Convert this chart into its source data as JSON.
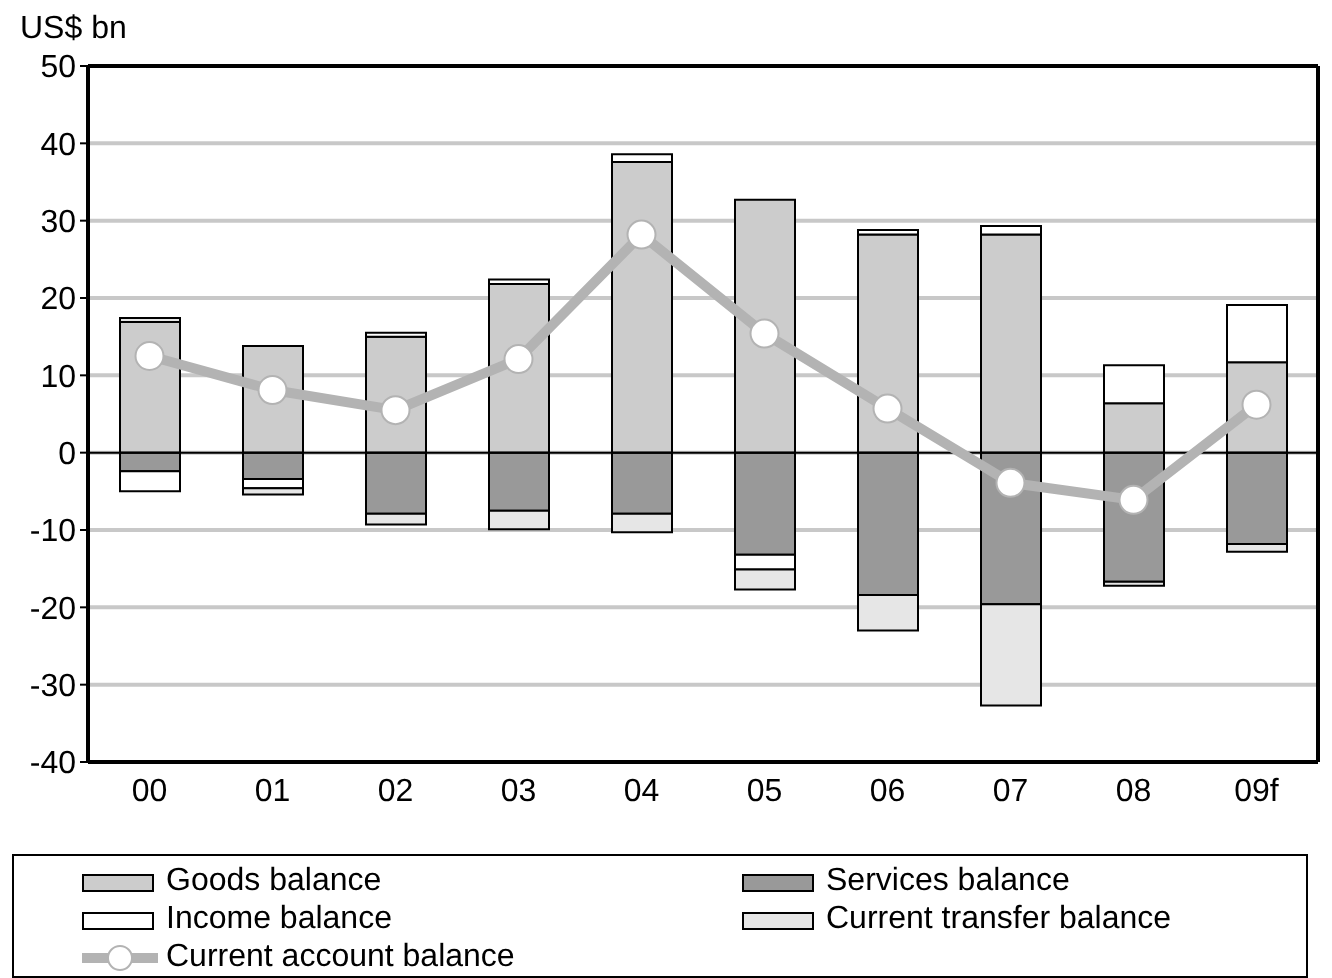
{
  "chart_data": {
    "type": "bar",
    "ylabel": "US$ bn",
    "categories": [
      "00",
      "01",
      "02",
      "03",
      "04",
      "05",
      "06",
      "07",
      "08",
      "09f"
    ],
    "stacked": true,
    "series": [
      {
        "name": "Goods balance",
        "color": "#cccccc",
        "values": [
          16.9,
          13.8,
          15.0,
          21.8,
          37.6,
          32.7,
          28.2,
          28.2,
          6.4,
          11.7
        ]
      },
      {
        "name": "Services balance",
        "color": "#999999",
        "values": [
          -2.4,
          -3.4,
          -7.9,
          -7.5,
          -7.9,
          -13.2,
          -18.4,
          -19.6,
          -16.7,
          -11.8
        ]
      },
      {
        "name": "Income balance",
        "color": "#ffffff",
        "values": [
          -2.6,
          -1.2,
          0.5,
          0.6,
          1.0,
          -1.9,
          0.6,
          1.1,
          4.9,
          7.4
        ]
      },
      {
        "name": "Current transfer balance",
        "color": "#e6e6e6",
        "values": [
          0.5,
          -0.8,
          -1.4,
          -2.4,
          -2.4,
          -2.6,
          -4.6,
          -13.1,
          -0.5,
          -1.0
        ]
      },
      {
        "name": "Current account balance",
        "type": "line",
        "color": "#b3b3b3",
        "values": [
          12.5,
          8.1,
          5.5,
          12.1,
          28.2,
          15.4,
          5.7,
          -3.9,
          -6.1,
          6.2
        ]
      }
    ],
    "ylim": [
      -40,
      50
    ],
    "yticks": [
      -40,
      -30,
      -20,
      -10,
      0,
      10,
      20,
      30,
      40,
      50
    ],
    "grid": "y",
    "legend": "bottom",
    "marker": "circle"
  }
}
